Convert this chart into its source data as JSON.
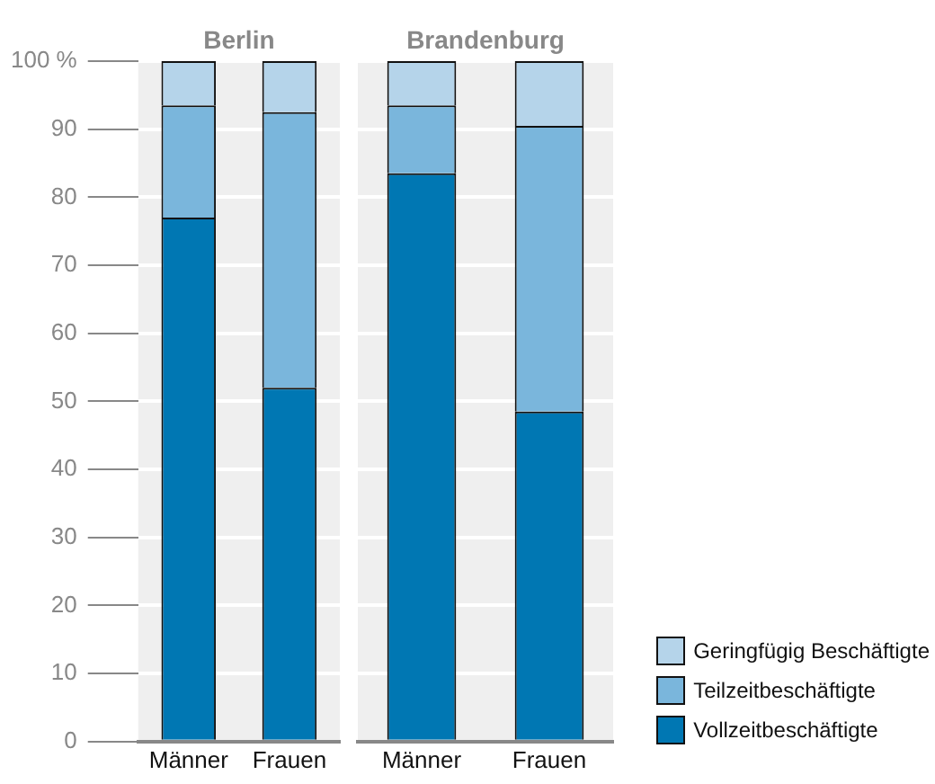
{
  "chart_data": [
    {
      "type": "bar",
      "title": "Berlin",
      "categories": [
        "Männer",
        "Frauen"
      ],
      "stacked": true,
      "grid": "y",
      "legend": false,
      "ylim": [
        0,
        100
      ],
      "yticks": [
        0,
        10,
        20,
        30,
        40,
        50,
        60,
        70,
        80,
        90,
        {
          "value": 100,
          "label": "100 %"
        }
      ],
      "series": [
        {
          "color": "#0077b3",
          "values": [
            77,
            52
          ]
        },
        {
          "color": "#7ab6dc",
          "values": [
            16.5,
            40.5
          ]
        },
        {
          "color": "#b5d4ea",
          "values": [
            6.5,
            7.5
          ]
        }
      ]
    },
    {
      "type": "bar",
      "title": "Brandenburg",
      "categories": [
        "Männer",
        "Frauen"
      ],
      "stacked": true,
      "grid": "y",
      "legend": "bottom right",
      "tick_labels": "x",
      "ylim": [
        0,
        100
      ],
      "yticks": [
        0,
        10,
        20,
        30,
        40,
        50,
        60,
        70,
        80,
        90,
        100
      ],
      "series": [
        {
          "name": "Vollzeitbeschäftigte",
          "color": "#0077b3",
          "values": [
            83.5,
            48.5
          ]
        },
        {
          "name": "Teilzeitbeschäftigte",
          "color": "#7ab6dc",
          "values": [
            10,
            42
          ]
        },
        {
          "name": "Geringfügig Beschäftigte",
          "color": "#b5d4ea",
          "values": [
            6.5,
            9.5
          ]
        }
      ]
    }
  ]
}
